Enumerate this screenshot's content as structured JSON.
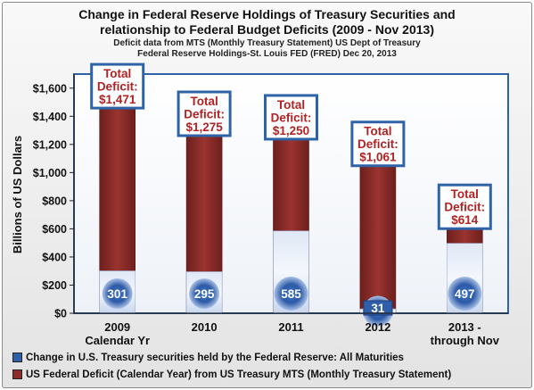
{
  "colors": {
    "deficit": "#8c2d2a",
    "fed_holdings": "#2f5fa8",
    "box_border": "#2e63a8",
    "deficit_text": "#b22222"
  },
  "chart_data": {
    "type": "bar",
    "title": "Change in Federal Reserve Holdings of Treasury Securities and relationship to Federal Budget Deficits (2009 - Nov 2013)",
    "title_lines": [
      "Change in Federal Reserve Holdings of Treasury Securities and",
      "relationship to Federal Budget Deficits (2009 - Nov 2013)"
    ],
    "subtitle_lines": [
      "Deficit data from MTS (Monthly Treasury Statement) US Dept of Treasury",
      "Federal Reserve Holdings-St. Louis FED (FRED) Dec 20, 2013"
    ],
    "ylabel": "Billions of US Dollars",
    "xlabel": "",
    "ylim": [
      0,
      1700
    ],
    "yticks": [
      0,
      200,
      400,
      600,
      800,
      1000,
      1200,
      1400,
      1600
    ],
    "ytick_labels": [
      "$0",
      "$200",
      "$400",
      "$600",
      "$800",
      "$1,000",
      "$1,200",
      "$1,400",
      "$1,600"
    ],
    "grid": false,
    "legend_position": "bottom",
    "categories": [
      [
        "2009",
        "Calendar Yr"
      ],
      [
        "2010"
      ],
      [
        "2011"
      ],
      [
        "2012"
      ],
      [
        "2013 -",
        "through Nov"
      ]
    ],
    "series": [
      {
        "name": "Change in U.S. Treasury securities held by the Federal Reserve: All Maturities",
        "values": [
          301,
          295,
          585,
          31,
          497
        ]
      },
      {
        "name": "US Federal Deficit (Calendar Year) from US Treasury MTS (Monthly Treasury Statement)",
        "values": [
          1471,
          1275,
          1250,
          1061,
          614
        ]
      }
    ],
    "data_labels": [
      "301",
      "295",
      "585",
      "31",
      "497"
    ],
    "annotations": [
      [
        "Total",
        "Deficit:",
        "$1,471"
      ],
      [
        "Total",
        "Deficit:",
        "$1,275"
      ],
      [
        "Total",
        "Deficit:",
        "$1,250"
      ],
      [
        "Total",
        "Deficit:",
        "$1,061"
      ],
      [
        "Total",
        "Deficit:",
        "$614"
      ]
    ]
  }
}
